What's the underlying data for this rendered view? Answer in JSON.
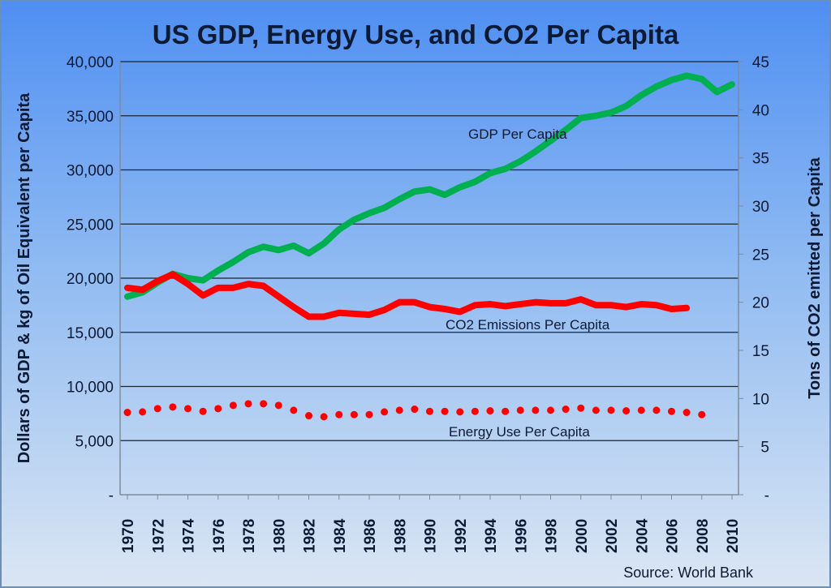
{
  "chart_data": {
    "type": "line",
    "title": "US GDP, Energy Use, and CO2 Per Capita",
    "ylabel": "Dollars of GDP & kg of Oil Equivalent per Capita",
    "y2label": "Tons of CO2 emitted per Capita",
    "source": "Source:  World Bank",
    "ylim": [
      0,
      40000
    ],
    "y2lim": [
      0,
      45
    ],
    "yticks": [
      "-",
      "5,000",
      "10,000",
      "15,000",
      "20,000",
      "25,000",
      "30,000",
      "35,000",
      "40,000"
    ],
    "y2ticks": [
      "-",
      "5",
      "10",
      "15",
      "20",
      "25",
      "30",
      "35",
      "40",
      "45"
    ],
    "xticks": [
      "1970",
      "1972",
      "1974",
      "1976",
      "1978",
      "1980",
      "1982",
      "1984",
      "1986",
      "1988",
      "1990",
      "1992",
      "1994",
      "1996",
      "1998",
      "2000",
      "2002",
      "2004",
      "2006",
      "2008",
      "2010"
    ],
    "grid": true,
    "x": [
      1970,
      1971,
      1972,
      1973,
      1974,
      1975,
      1976,
      1977,
      1978,
      1979,
      1980,
      1981,
      1982,
      1983,
      1984,
      1985,
      1986,
      1987,
      1988,
      1989,
      1990,
      1991,
      1992,
      1993,
      1994,
      1995,
      1996,
      1997,
      1998,
      1999,
      2000,
      2001,
      2002,
      2003,
      2004,
      2005,
      2006,
      2007,
      2008,
      2009,
      2010
    ],
    "series": [
      {
        "name": "GDP Per Capita",
        "label": "GDP Per Capita",
        "axis": "left",
        "color": "#00b050",
        "style": "solid",
        "values": [
          18300,
          18700,
          19600,
          20400,
          20000,
          19800,
          20700,
          21500,
          22400,
          22900,
          22600,
          23000,
          22300,
          23200,
          24500,
          25400,
          26000,
          26500,
          27300,
          28000,
          28200,
          27700,
          28400,
          28900,
          29700,
          30100,
          30800,
          31700,
          32700,
          33700,
          34800,
          35000,
          35300,
          35900,
          36900,
          37700,
          38300,
          38700,
          38400,
          37200,
          37900
        ]
      },
      {
        "name": "CO2 Emissions Per Capita",
        "label": "CO2 Emissions  Per Capita",
        "axis": "right",
        "color": "#ff0000",
        "style": "solid",
        "values": [
          21.5,
          21.3,
          22.2,
          22.9,
          21.9,
          20.7,
          21.5,
          21.5,
          21.9,
          21.7,
          20.6,
          19.5,
          18.5,
          18.5,
          18.9,
          18.8,
          18.7,
          19.2,
          20.0,
          20.0,
          19.5,
          19.3,
          19.0,
          19.7,
          19.8,
          19.6,
          19.8,
          20.0,
          19.9,
          19.9,
          20.3,
          19.7,
          19.7,
          19.5,
          19.8,
          19.7,
          19.3,
          19.4,
          null,
          null,
          null
        ]
      },
      {
        "name": "Energy Use Per Capita",
        "label": "Energy Use Per Capita",
        "axis": "left",
        "color": "#ff0000",
        "style": "dotted",
        "values": [
          7600,
          7650,
          7950,
          8100,
          7950,
          7700,
          7950,
          8250,
          8400,
          8400,
          8250,
          7800,
          7300,
          7200,
          7400,
          7400,
          7400,
          7650,
          7800,
          7900,
          7700,
          7700,
          7650,
          7700,
          7750,
          7700,
          7800,
          7800,
          7800,
          7900,
          8000,
          7800,
          7800,
          7750,
          7800,
          7800,
          7700,
          7600,
          7400,
          null,
          null
        ]
      }
    ]
  }
}
